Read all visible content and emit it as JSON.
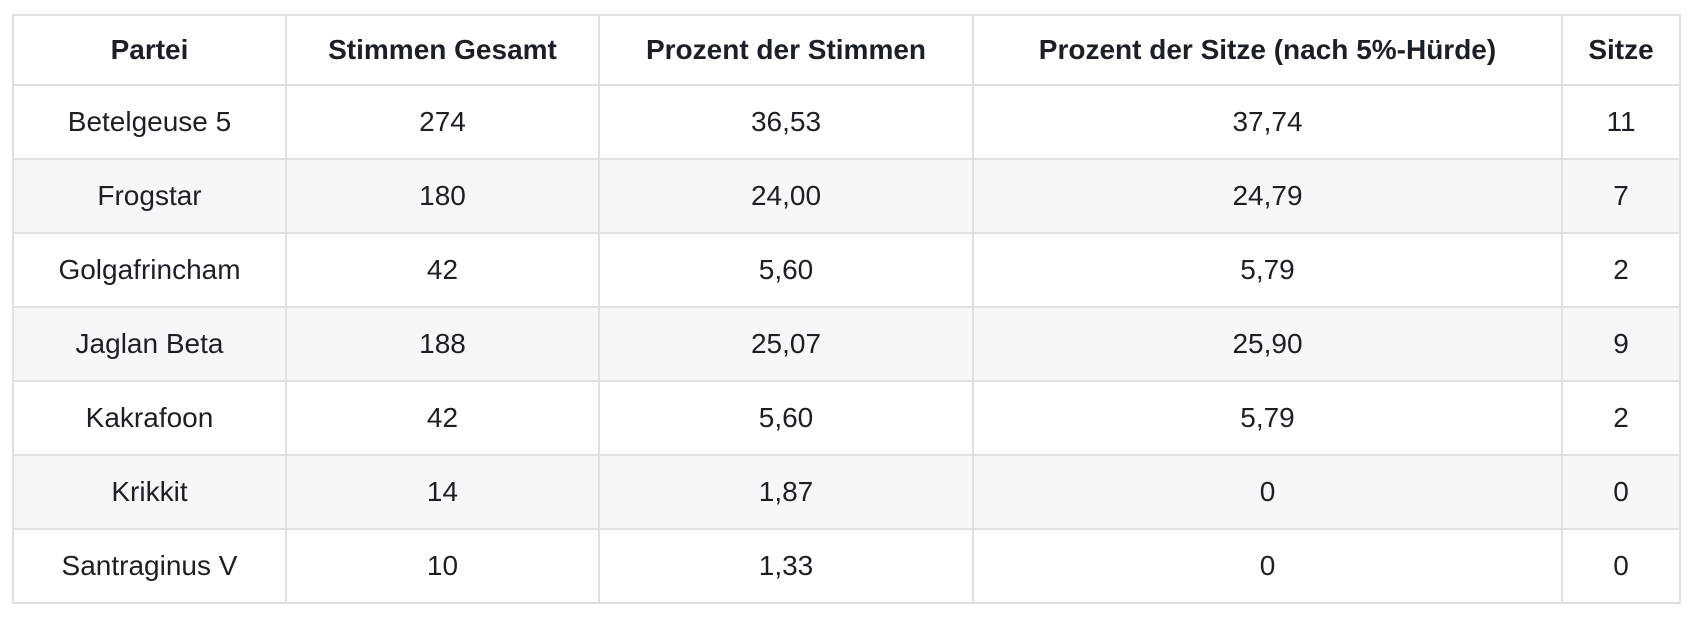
{
  "colors": {
    "border": "#dde0e4",
    "stripe_row_background": "#f6f7f9",
    "row_background": "#ffffff",
    "text": "#1c2026"
  },
  "chart_data": {
    "type": "table",
    "title": "",
    "columns": [
      "Partei",
      "Stimmen Gesamt",
      "Prozent der Stimmen",
      "Prozent der Sitze (nach 5%-Hürde)",
      "Sitze"
    ],
    "rows": [
      {
        "partei": "Betelgeuse 5",
        "stimmen_gesamt": "274",
        "prozent_der_stimmen": "36,53",
        "prozent_der_sitze": "37,74",
        "sitze": "11"
      },
      {
        "partei": "Frogstar",
        "stimmen_gesamt": "180",
        "prozent_der_stimmen": "24,00",
        "prozent_der_sitze": "24,79",
        "sitze": "7"
      },
      {
        "partei": "Golgafrincham",
        "stimmen_gesamt": "42",
        "prozent_der_stimmen": "5,60",
        "prozent_der_sitze": "5,79",
        "sitze": "2"
      },
      {
        "partei": "Jaglan Beta",
        "stimmen_gesamt": "188",
        "prozent_der_stimmen": "25,07",
        "prozent_der_sitze": "25,90",
        "sitze": "9"
      },
      {
        "partei": "Kakrafoon",
        "stimmen_gesamt": "42",
        "prozent_der_stimmen": "5,60",
        "prozent_der_sitze": "5,79",
        "sitze": "2"
      },
      {
        "partei": "Krikkit",
        "stimmen_gesamt": "14",
        "prozent_der_stimmen": "1,87",
        "prozent_der_sitze": "0",
        "sitze": "0"
      },
      {
        "partei": "Santraginus V",
        "stimmen_gesamt": "10",
        "prozent_der_stimmen": "1,33",
        "prozent_der_sitze": "0",
        "sitze": "0"
      }
    ]
  }
}
